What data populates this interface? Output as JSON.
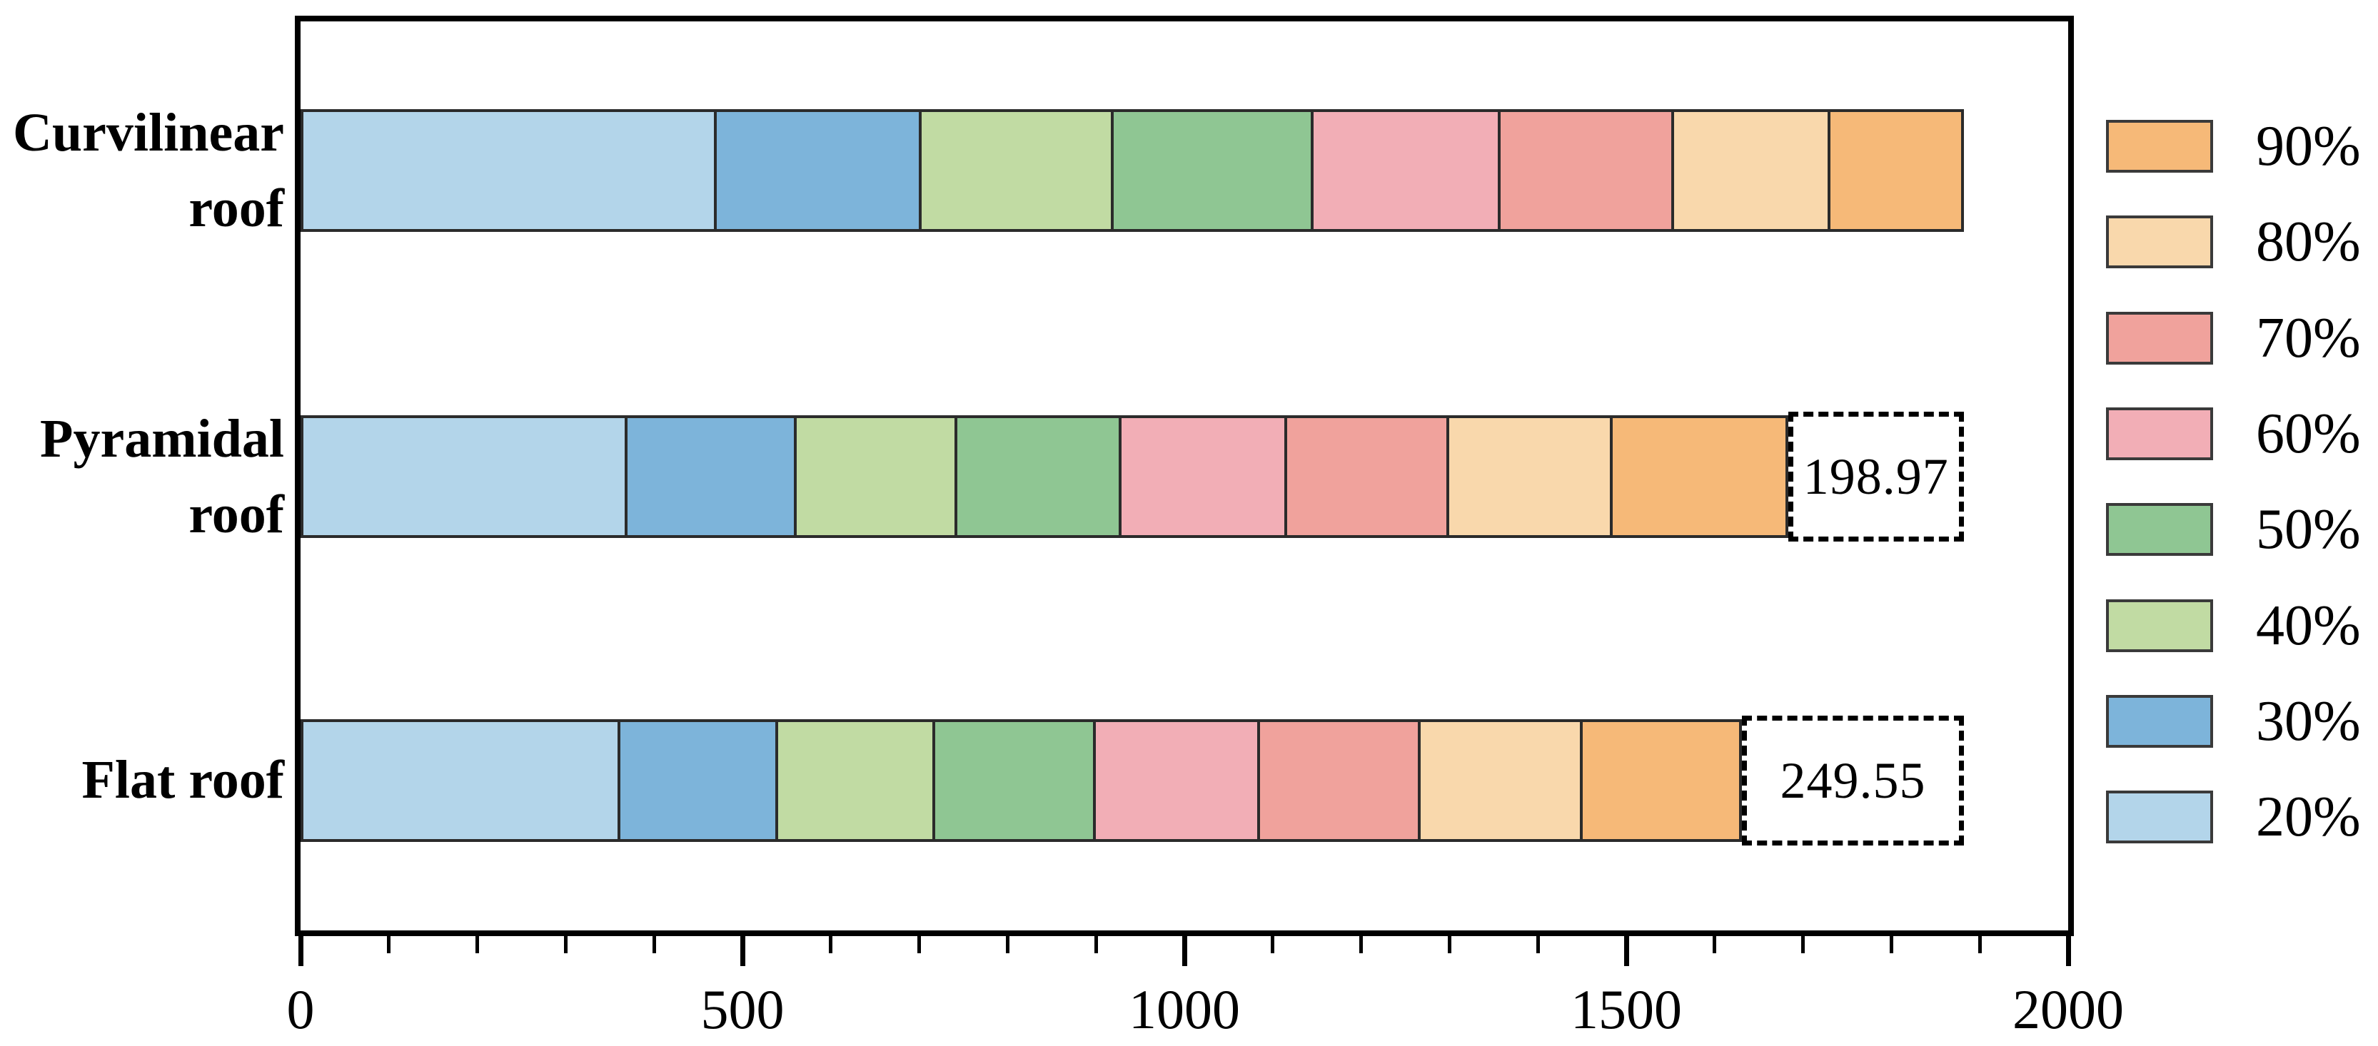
{
  "chart_data": {
    "type": "bar",
    "orientation": "horizontal",
    "stacked": true,
    "title": "",
    "xlabel": "",
    "ylabel": "",
    "xlim": [
      0,
      2000
    ],
    "x_major_ticks": [
      0,
      500,
      1000,
      1500,
      2000
    ],
    "x_major_tick_labels": [
      "0",
      "500",
      "1000",
      "1500",
      "2000"
    ],
    "x_minor_tick_step": 100,
    "grid": false,
    "categories": [
      "Curvilinear roof",
      "Pyramidal roof",
      "Flat roof"
    ],
    "category_label_lines": [
      [
        "Curvilinear",
        "roof"
      ],
      [
        "Pyramidal",
        "roof"
      ],
      [
        "Flat roof"
      ]
    ],
    "series": [
      {
        "name": "20%",
        "color": "#b3d5ea",
        "values": [
          471,
          370,
          362
        ]
      },
      {
        "name": "30%",
        "color": "#7db4da",
        "values": [
          232,
          191,
          178
        ]
      },
      {
        "name": "40%",
        "color": "#c1dba3",
        "values": [
          217,
          182,
          178
        ]
      },
      {
        "name": "50%",
        "color": "#8fc693",
        "values": [
          226,
          186,
          182
        ]
      },
      {
        "name": "60%",
        "color": "#f2aeb6",
        "values": [
          212,
          187,
          186
        ]
      },
      {
        "name": "70%",
        "color": "#f0a29c",
        "values": [
          196,
          184,
          181
        ]
      },
      {
        "name": "80%",
        "color": "#f9d8ac",
        "values": [
          177,
          185,
          184
        ]
      },
      {
        "name": "90%",
        "color": "#f6b978",
        "values": [
          151,
          198,
          180
        ]
      }
    ],
    "totals": [
      1882,
      1683,
      1631
    ],
    "annotations": [
      {
        "category_index": 1,
        "label": "198.97",
        "box_from": 1683,
        "box_to": 1882
      },
      {
        "category_index": 2,
        "label": "249.55",
        "box_from": 1631,
        "box_to": 1882
      }
    ],
    "legend": {
      "position": "right-outside",
      "order": [
        "90%",
        "80%",
        "70%",
        "60%",
        "50%",
        "40%",
        "30%",
        "20%"
      ]
    },
    "colors": {
      "axis": "#000000",
      "segment_border": "#2b2b2b",
      "annotation_border": "#000000",
      "background": "#ffffff"
    }
  }
}
